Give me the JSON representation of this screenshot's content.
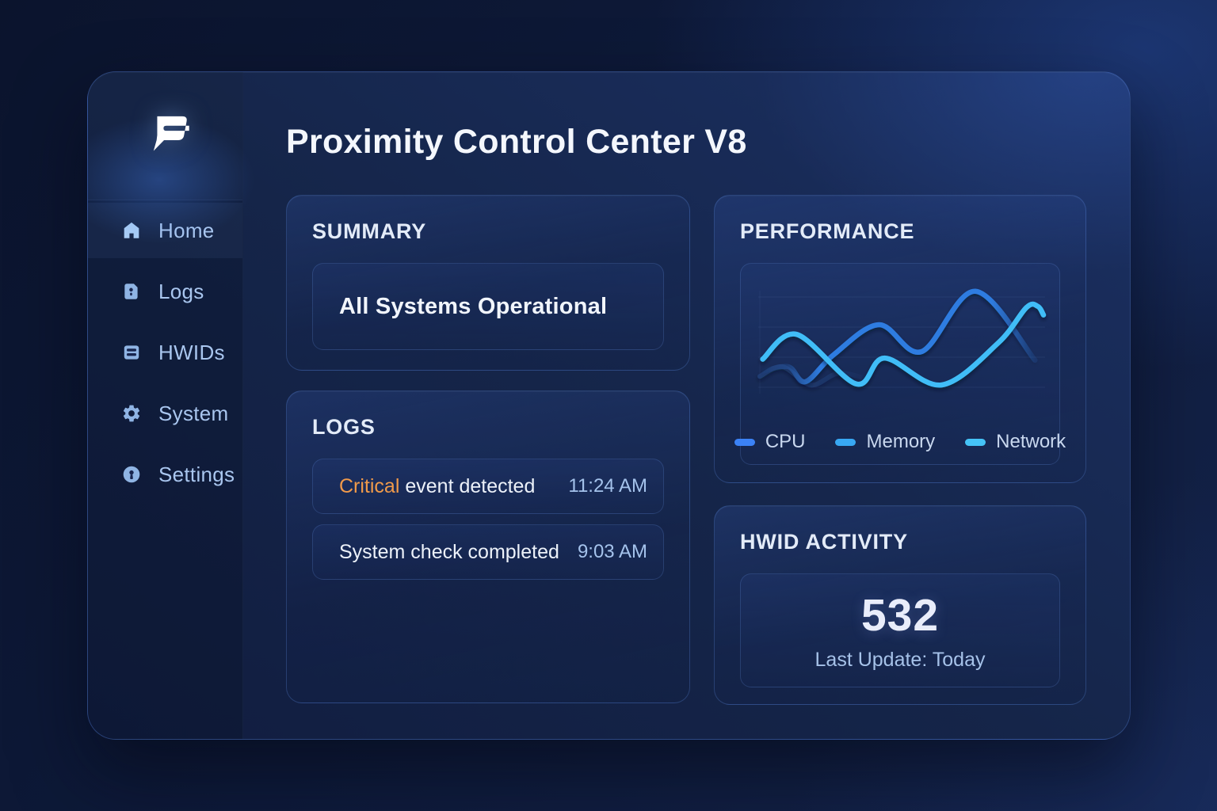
{
  "app": {
    "title": "Proximity Control Center V8",
    "logo_glyph": "P"
  },
  "sidebar": {
    "items": [
      {
        "label": "Home",
        "icon": "home-icon",
        "active": true
      },
      {
        "label": "Logs",
        "icon": "logs-icon",
        "active": false
      },
      {
        "label": "HWIDs",
        "icon": "hwids-icon",
        "active": false
      },
      {
        "label": "System",
        "icon": "system-icon",
        "active": false
      },
      {
        "label": "Settings",
        "icon": "settings-icon",
        "active": false
      }
    ]
  },
  "summary": {
    "heading": "SUMMARY",
    "status_text": "All Systems Operational"
  },
  "logs": {
    "heading": "LOGS",
    "entries": [
      {
        "prefix": "Critical",
        "prefix_color": "#f09a4a",
        "text": " event detected",
        "time": "11:24 AM"
      },
      {
        "prefix": "",
        "prefix_color": "",
        "text": "System check completed",
        "time": "9:03 AM"
      }
    ]
  },
  "performance": {
    "heading": "PERFORMANCE"
  },
  "hwid": {
    "heading": "HWID ACTIVITY",
    "count": "532",
    "subtext": "Last Update: Today"
  },
  "colors": {
    "accent_orange": "#f09a4a",
    "icon_blue": "#8fb4e4",
    "card_border": "#3a5da6"
  },
  "chart_data": {
    "type": "line",
    "title": "",
    "x_axis": {
      "visible": false,
      "range": [
        0,
        100
      ]
    },
    "y_axis": {
      "visible": false,
      "range": [
        0,
        100
      ]
    },
    "grid": {
      "horizontal_lines": 4
    },
    "legend": {
      "position": "bottom",
      "entries": [
        "CPU",
        "Memory",
        "Network"
      ]
    },
    "series": [
      {
        "name": "Memory",
        "color": "#38a8f3",
        "stroke": "#24427c",
        "fade": "out",
        "points": [
          [
            0,
            16
          ],
          [
            8,
            25
          ],
          [
            18,
            8
          ],
          [
            28,
            19
          ],
          [
            40,
            12
          ]
        ]
      },
      {
        "name": "CPU",
        "color": "#3b82f6",
        "stroke": "#2f7ce0",
        "fade": "both",
        "points": [
          [
            0,
            20
          ],
          [
            10,
            25
          ],
          [
            16,
            11
          ],
          [
            26,
            36
          ],
          [
            42,
            64
          ],
          [
            57,
            39
          ],
          [
            76,
            95
          ],
          [
            97,
            31
          ]
        ]
      },
      {
        "name": "Network",
        "color": "#45c3f7",
        "stroke": "#41bdf7",
        "fade": "none",
        "points": [
          [
            1,
            32
          ],
          [
            13,
            55
          ],
          [
            34,
            9
          ],
          [
            44,
            33
          ],
          [
            64,
            8
          ],
          [
            84,
            47
          ],
          [
            94,
            80
          ],
          [
            98,
            81
          ],
          [
            100,
            73
          ]
        ]
      }
    ]
  }
}
